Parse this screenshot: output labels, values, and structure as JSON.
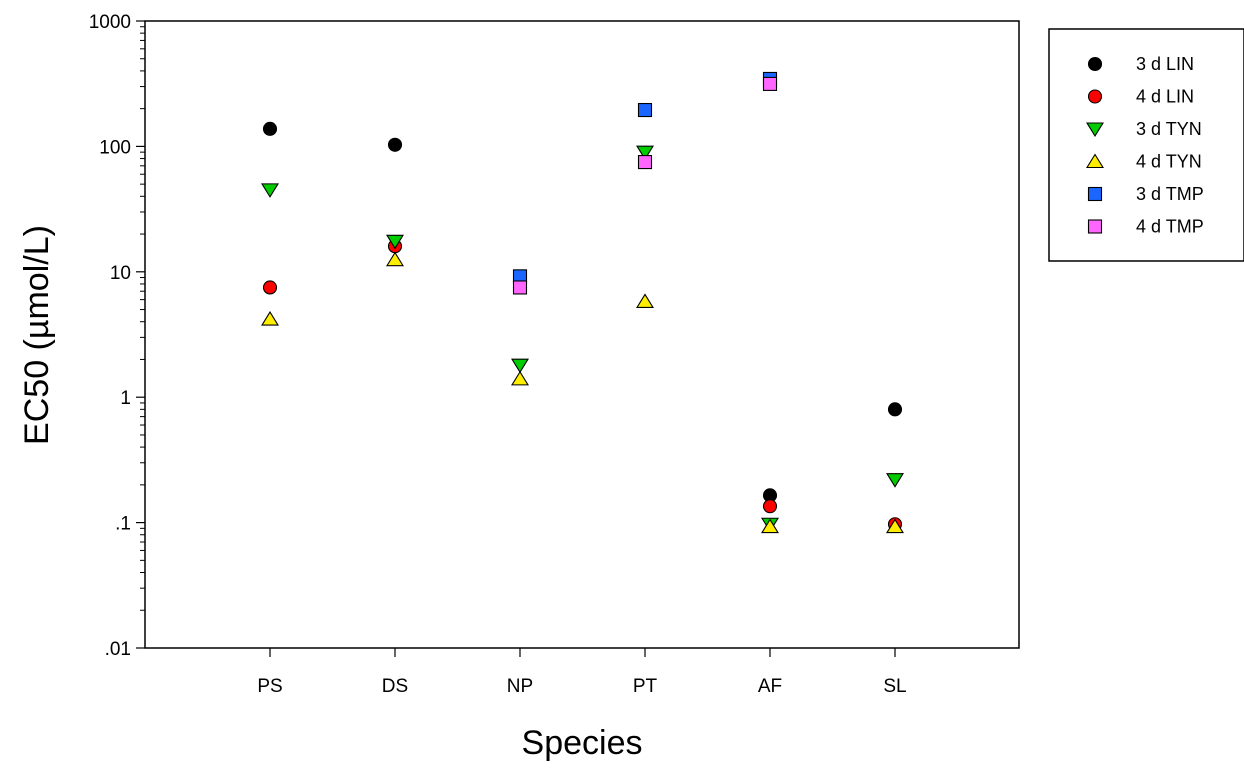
{
  "chart_data": {
    "type": "scatter",
    "title": "",
    "xlabel": "Species",
    "ylabel": "EC50 (µmol/L)",
    "y_scale": "log",
    "ylim": [
      0.01,
      1000
    ],
    "y_ticks": [
      {
        "value": 1000,
        "label": "1000"
      },
      {
        "value": 100,
        "label": "100"
      },
      {
        "value": 10,
        "label": "10"
      },
      {
        "value": 1,
        "label": "1"
      },
      {
        "value": 0.1,
        "label": ".1"
      },
      {
        "value": 0.01,
        "label": ".01"
      }
    ],
    "categories": [
      "PS",
      "DS",
      "NP",
      "PT",
      "AF",
      "SL"
    ],
    "grid": false,
    "legend_position": "top-right, outside plot",
    "series": [
      {
        "name": "3 d LIN",
        "marker": "circle",
        "color": "#000000",
        "values": [
          138,
          103,
          null,
          null,
          0.165,
          0.8
        ]
      },
      {
        "name": "4 d LIN",
        "marker": "circle",
        "color": "#ff0000",
        "values": [
          7.5,
          16,
          null,
          null,
          0.135,
          0.097
        ]
      },
      {
        "name": "3 d TYN",
        "marker": "triangle-down",
        "color": "#00cc00",
        "values": [
          45,
          17.5,
          1.8,
          90,
          0.097,
          0.22
        ]
      },
      {
        "name": "4 d TYN",
        "marker": "triangle-up",
        "color": "#ffee00",
        "values": [
          4.2,
          12.5,
          1.4,
          5.8,
          0.093,
          0.093
        ]
      },
      {
        "name": "3 d TMP",
        "marker": "square",
        "color": "#1a66ff",
        "values": [
          null,
          null,
          9.2,
          195,
          345,
          null
        ]
      },
      {
        "name": "4 d TMP",
        "marker": "square",
        "color": "#ff66ff",
        "values": [
          null,
          null,
          7.5,
          75,
          315,
          null
        ]
      }
    ]
  }
}
